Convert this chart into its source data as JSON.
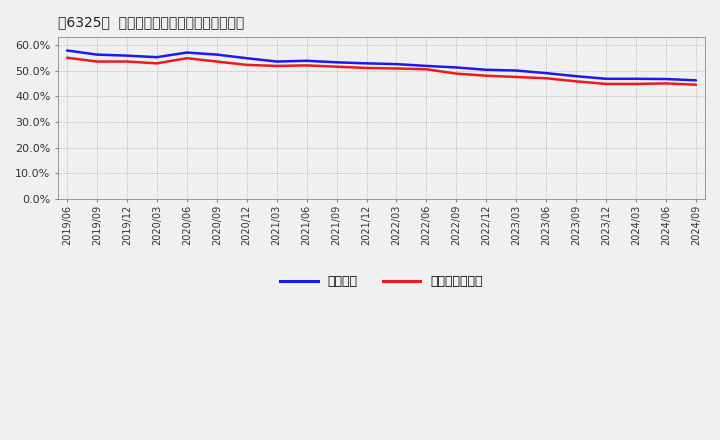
{
  "title": "［6325］  固定比率、固定長期適合率の推移",
  "x_labels": [
    "2019/06",
    "2019/09",
    "2019/12",
    "2020/03",
    "2020/06",
    "2020/09",
    "2020/12",
    "2021/03",
    "2021/06",
    "2021/09",
    "2021/12",
    "2022/03",
    "2022/06",
    "2022/09",
    "2022/12",
    "2023/03",
    "2023/06",
    "2023/09",
    "2023/12",
    "2024/03",
    "2024/06",
    "2024/09"
  ],
  "fixed_ratio": [
    57.8,
    56.2,
    55.8,
    55.2,
    57.0,
    56.2,
    54.8,
    53.5,
    53.8,
    53.2,
    52.8,
    52.5,
    51.8,
    51.2,
    50.3,
    50.0,
    49.0,
    47.8,
    46.8,
    46.8,
    46.7,
    46.2
  ],
  "fixed_long_ratio": [
    55.0,
    53.5,
    53.5,
    52.8,
    54.8,
    53.5,
    52.2,
    51.8,
    52.0,
    51.5,
    51.0,
    50.8,
    50.5,
    48.8,
    48.0,
    47.5,
    47.0,
    45.8,
    44.8,
    44.8,
    45.0,
    44.5
  ],
  "line1_color": "#1a1aee",
  "line2_color": "#ee1a1a",
  "legend1": "固定比率",
  "legend2": "固定長期適合率",
  "ylim": [
    0,
    63
  ],
  "yticks": [
    0,
    10,
    20,
    30,
    40,
    50,
    60
  ],
  "bg_color": "#f0f0f0",
  "plot_bg_color": "#f0f0f0",
  "grid_color": "#999999",
  "title_color": "#222222",
  "linewidth": 1.8
}
